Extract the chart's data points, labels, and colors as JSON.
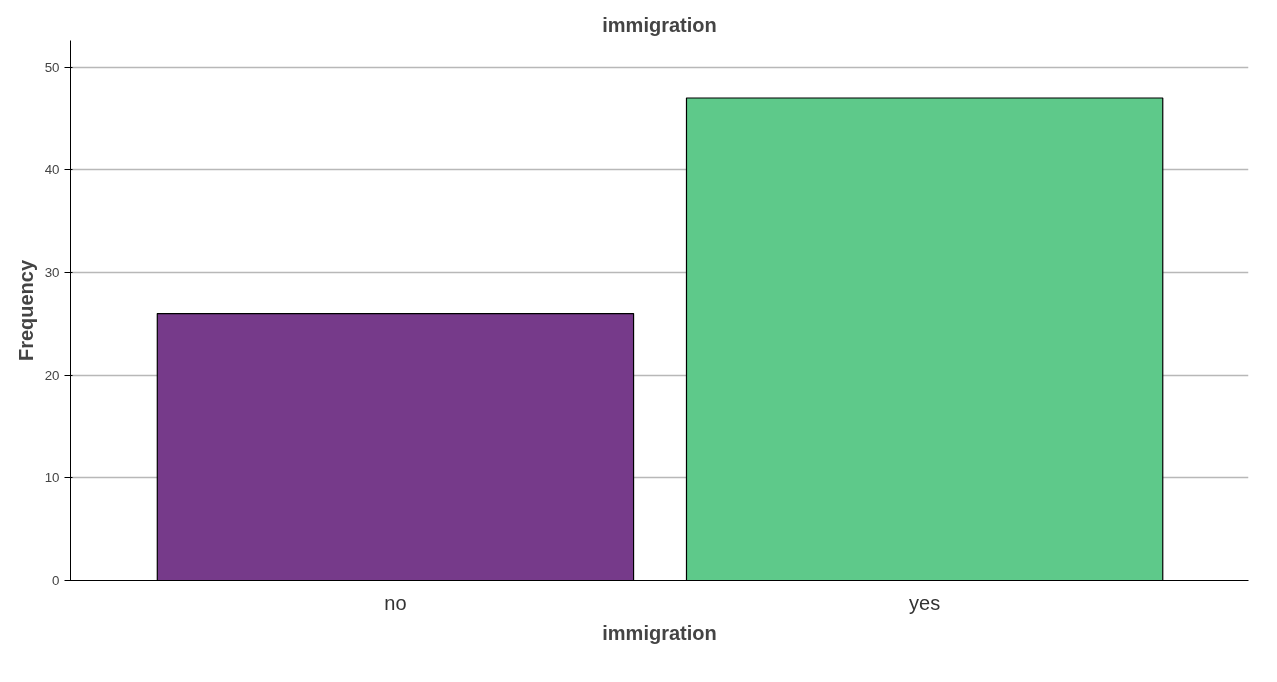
{
  "chart_data": {
    "type": "bar",
    "title": "immigration",
    "xlabel": "immigration",
    "ylabel": "Frequency",
    "categories": [
      "no",
      "yes"
    ],
    "values": [
      26,
      47
    ],
    "colors": [
      "#763a8a",
      "#5ec98a"
    ],
    "ylim": [
      0,
      52.6
    ],
    "yticks": [
      0,
      10,
      20,
      30,
      40,
      50
    ],
    "grid": "y"
  }
}
